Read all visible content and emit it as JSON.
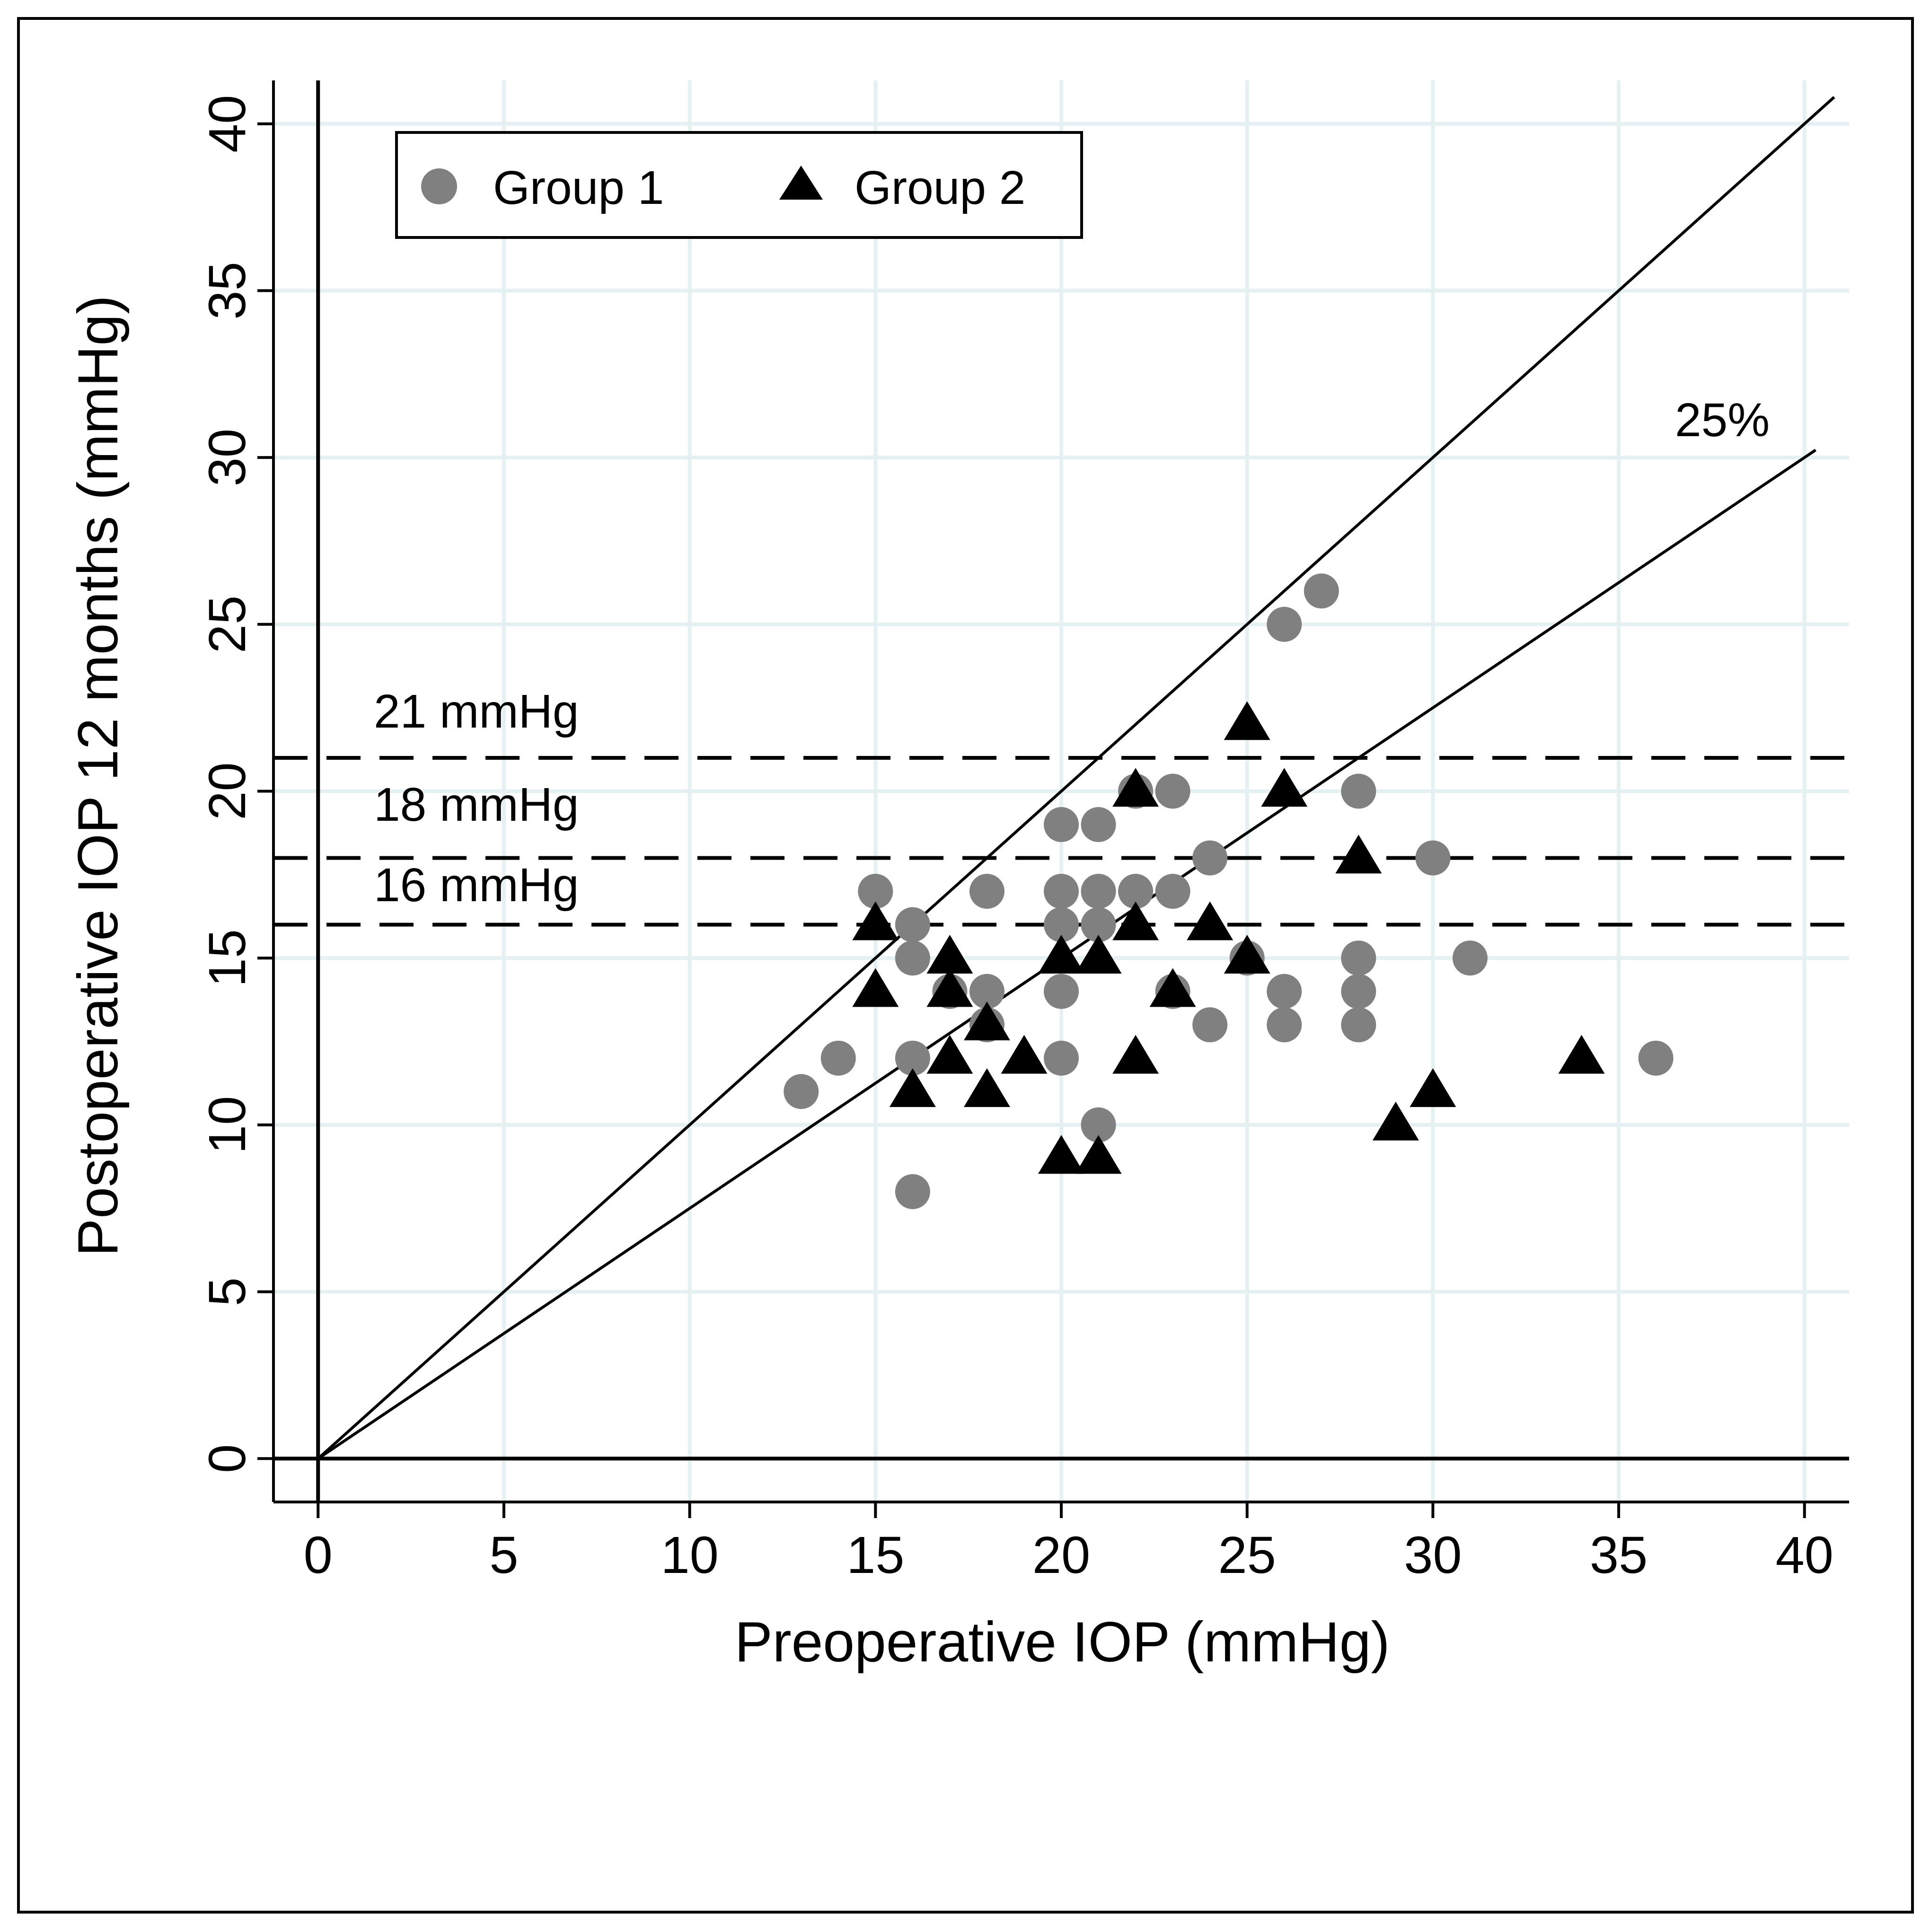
{
  "chart_data": {
    "type": "scatter",
    "title": "",
    "xlabel": "Preoperative IOP (mmHg)",
    "ylabel": "Postoperative IOP 12 months (mmHg)",
    "xlim": [
      -1.2,
      41.2
    ],
    "ylim": [
      -1.3,
      41.3
    ],
    "xticks": [
      0,
      5,
      10,
      15,
      20,
      25,
      30,
      35,
      40
    ],
    "yticks": [
      0,
      5,
      10,
      15,
      20,
      25,
      30,
      35,
      40
    ],
    "grid": true,
    "legend_position": "top-left",
    "colors": {
      "group1": "#808080",
      "group2": "#000000",
      "grid": "#e4f0f2",
      "lines": "#000000"
    },
    "series": [
      {
        "name": "Group 1",
        "marker": "circle",
        "points": [
          {
            "x": 13,
            "y": 11
          },
          {
            "x": 14,
            "y": 12
          },
          {
            "x": 15,
            "y": 17
          },
          {
            "x": 16,
            "y": 16
          },
          {
            "x": 16,
            "y": 15
          },
          {
            "x": 16,
            "y": 12
          },
          {
            "x": 16,
            "y": 8
          },
          {
            "x": 17,
            "y": 14
          },
          {
            "x": 18,
            "y": 17
          },
          {
            "x": 18,
            "y": 14
          },
          {
            "x": 18,
            "y": 13
          },
          {
            "x": 20,
            "y": 19
          },
          {
            "x": 20,
            "y": 17
          },
          {
            "x": 20,
            "y": 16
          },
          {
            "x": 20,
            "y": 14
          },
          {
            "x": 20,
            "y": 12
          },
          {
            "x": 21,
            "y": 19
          },
          {
            "x": 21,
            "y": 17
          },
          {
            "x": 21,
            "y": 16
          },
          {
            "x": 21,
            "y": 10
          },
          {
            "x": 22,
            "y": 20
          },
          {
            "x": 22,
            "y": 17
          },
          {
            "x": 23,
            "y": 20
          },
          {
            "x": 23,
            "y": 17
          },
          {
            "x": 23,
            "y": 14
          },
          {
            "x": 24,
            "y": 18
          },
          {
            "x": 24,
            "y": 13
          },
          {
            "x": 25,
            "y": 15
          },
          {
            "x": 26,
            "y": 25
          },
          {
            "x": 26,
            "y": 14
          },
          {
            "x": 26,
            "y": 13
          },
          {
            "x": 27,
            "y": 26
          },
          {
            "x": 28,
            "y": 20
          },
          {
            "x": 28,
            "y": 15
          },
          {
            "x": 28,
            "y": 14
          },
          {
            "x": 28,
            "y": 13
          },
          {
            "x": 30,
            "y": 18
          },
          {
            "x": 31,
            "y": 15
          },
          {
            "x": 36,
            "y": 12
          }
        ]
      },
      {
        "name": "Group 2",
        "marker": "triangle",
        "points": [
          {
            "x": 15,
            "y": 16
          },
          {
            "x": 15,
            "y": 14
          },
          {
            "x": 16,
            "y": 11
          },
          {
            "x": 17,
            "y": 15
          },
          {
            "x": 17,
            "y": 14
          },
          {
            "x": 17,
            "y": 12
          },
          {
            "x": 18,
            "y": 13
          },
          {
            "x": 18,
            "y": 11
          },
          {
            "x": 19,
            "y": 12
          },
          {
            "x": 20,
            "y": 15
          },
          {
            "x": 20,
            "y": 9
          },
          {
            "x": 21,
            "y": 15
          },
          {
            "x": 21,
            "y": 9
          },
          {
            "x": 22,
            "y": 20
          },
          {
            "x": 22,
            "y": 16
          },
          {
            "x": 22,
            "y": 12
          },
          {
            "x": 23,
            "y": 14
          },
          {
            "x": 24,
            "y": 16
          },
          {
            "x": 25,
            "y": 22
          },
          {
            "x": 25,
            "y": 15
          },
          {
            "x": 26,
            "y": 20
          },
          {
            "x": 28,
            "y": 18
          },
          {
            "x": 29,
            "y": 10
          },
          {
            "x": 30,
            "y": 11
          },
          {
            "x": 34,
            "y": 12
          }
        ]
      }
    ],
    "reference_lines": [
      {
        "kind": "diagonal",
        "slope": 1.0,
        "x_end": 40.8,
        "label": ""
      },
      {
        "kind": "diagonal",
        "slope": 0.75,
        "x_end": 40.3,
        "label": "25%"
      }
    ],
    "threshold_lines": [
      {
        "y": 21,
        "label": "21 mmHg"
      },
      {
        "y": 18,
        "label": "18 mmHg"
      },
      {
        "y": 16,
        "label": "16 mmHg"
      }
    ]
  }
}
